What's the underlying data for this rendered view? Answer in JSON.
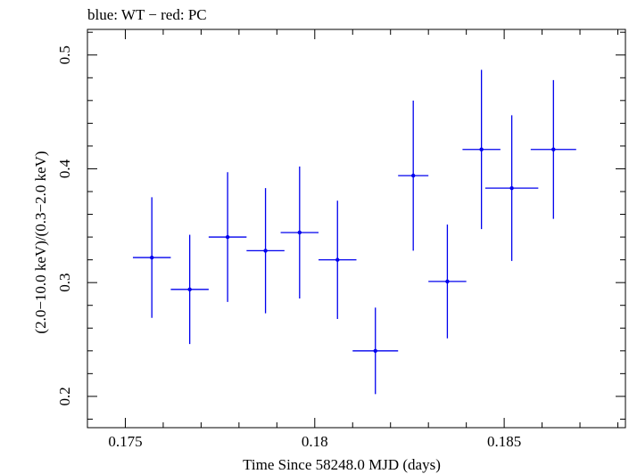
{
  "chart_data": {
    "type": "scatter",
    "title": "blue: WT − red: PC",
    "xlabel": "Time Since 58248.0 MJD (days)",
    "ylabel": "(2.0−10.0 keV)/(0.3−2.0 keV)",
    "xlim": [
      0.174,
      0.1882
    ],
    "ylim": [
      0.1725,
      0.5225
    ],
    "x_ticks": [
      0.175,
      0.18,
      0.185
    ],
    "x_tick_labels": [
      "0.175",
      "0.18",
      "0.185"
    ],
    "y_ticks": [
      0.2,
      0.3,
      0.4,
      0.5
    ],
    "y_tick_labels": [
      "0.2",
      "0.3",
      "0.4",
      "0.5"
    ],
    "grid": false,
    "series": [
      {
        "name": "WT",
        "color": "#0000ee",
        "points": [
          {
            "x": 0.1757,
            "xerr": 0.0005,
            "y": 0.322,
            "yerr": 0.053
          },
          {
            "x": 0.1767,
            "xerr": 0.0005,
            "y": 0.294,
            "yerr": 0.048
          },
          {
            "x": 0.1777,
            "xerr": 0.0005,
            "y": 0.34,
            "yerr": 0.057
          },
          {
            "x": 0.1787,
            "xerr": 0.0005,
            "y": 0.328,
            "yerr": 0.055
          },
          {
            "x": 0.1796,
            "xerr": 0.0005,
            "y": 0.344,
            "yerr": 0.058
          },
          {
            "x": 0.1806,
            "xerr": 0.0005,
            "y": 0.32,
            "yerr": 0.052
          },
          {
            "x": 0.1816,
            "xerr": 0.0006,
            "y": 0.24,
            "yerr": 0.038
          },
          {
            "x": 0.1826,
            "xerr": 0.0004,
            "y": 0.394,
            "yerr": 0.066
          },
          {
            "x": 0.1835,
            "xerr": 0.0005,
            "y": 0.301,
            "yerr": 0.05
          },
          {
            "x": 0.1844,
            "xerr": 0.0005,
            "y": 0.417,
            "yerr": 0.07
          },
          {
            "x": 0.1852,
            "xerr": 0.0007,
            "y": 0.383,
            "yerr": 0.064
          },
          {
            "x": 0.1863,
            "xerr": 0.0006,
            "y": 0.417,
            "yerr": 0.061
          }
        ]
      }
    ]
  }
}
